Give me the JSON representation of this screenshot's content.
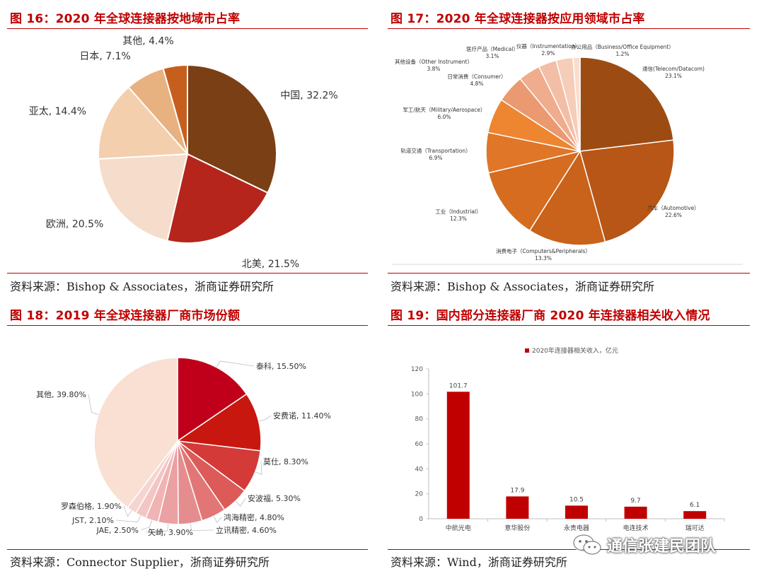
{
  "panels": {
    "fig16": {
      "title": "图 16：2020 年全球连接器按地域市占率",
      "source": "资料来源：Bishop & Associates，浙商证券研究所"
    },
    "fig17": {
      "title": "图 17：2020 年全球连接器按应用领域市占率",
      "source": "资料来源：Bishop & Associates，浙商证券研究所"
    },
    "fig18": {
      "title": "图 18：2019 年全球连接器厂商市场份额",
      "source": "资料来源：Connector Supplier，浙商证券研究所"
    },
    "fig19": {
      "title": "图 19：国内部分连接器厂商 2020 年连接器相关收入情况",
      "source": "资料来源：Wind，浙商证券研究所"
    }
  },
  "watermark": {
    "text": "通信张建民团队",
    "icon": "wechat-icon"
  },
  "chart_data": [
    {
      "id": "fig16",
      "type": "pie",
      "title": "",
      "slices": [
        {
          "label": "中国, 32.2%",
          "value": 32.2,
          "color": "#7a3f14"
        },
        {
          "label": "北美, 21.5%",
          "value": 21.5,
          "color": "#b5251b"
        },
        {
          "label": "欧洲, 20.5%",
          "value": 20.5,
          "color": "#f6dccb"
        },
        {
          "label": "亚太, 14.4%",
          "value": 14.4,
          "color": "#f3cfae"
        },
        {
          "label": "日本, 7.1%",
          "value": 7.1,
          "color": "#e8b180"
        },
        {
          "label": "其他, 4.4%",
          "value": 4.4,
          "color": "#c65f1d"
        }
      ]
    },
    {
      "id": "fig17",
      "type": "pie",
      "title": "",
      "slices": [
        {
          "label": "通信(Telecom/Datacom)",
          "pct": "23.1%",
          "value": 23.1,
          "color": "#9c4c12"
        },
        {
          "label": "汽车（Automotive）",
          "pct": "22.6%",
          "value": 22.6,
          "color": "#b75616"
        },
        {
          "label": "消费电子（Computers&Peripherals）",
          "pct": "13.3%",
          "value": 13.3,
          "color": "#c9621a"
        },
        {
          "label": "工业（Industrial）",
          "pct": "12.3%",
          "value": 12.3,
          "color": "#d56c20"
        },
        {
          "label": "轨道交通（Transportation）",
          "pct": "6.9%",
          "value": 6.9,
          "color": "#e07628"
        },
        {
          "label": "军工/航天（Military/Aerospace）",
          "pct": "6.0%",
          "value": 6.0,
          "color": "#ee8530"
        },
        {
          "label": "日常消费（Consumer）",
          "pct": "4.8%",
          "value": 4.8,
          "color": "#eb9970"
        },
        {
          "label": "其他设备（Other Instrument）",
          "pct": "3.8%",
          "value": 3.8,
          "color": "#efad8e"
        },
        {
          "label": "医疗产品（Medical）",
          "pct": "3.1%",
          "value": 3.1,
          "color": "#f3bea6"
        },
        {
          "label": "仪器（Instrumentation）",
          "pct": "2.9%",
          "value": 2.9,
          "color": "#f6cdb9"
        },
        {
          "label": "办公用品（Business/Office Equipment）",
          "pct": "1.2%",
          "value": 1.2,
          "color": "#f9ddcf"
        }
      ]
    },
    {
      "id": "fig18",
      "type": "pie",
      "title": "",
      "slices": [
        {
          "label": "泰科, 15.50%",
          "value": 15.5,
          "color": "#c0001a"
        },
        {
          "label": "安费诺, 11.40%",
          "value": 11.4,
          "color": "#c8170f"
        },
        {
          "label": "莫仕, 8.30%",
          "value": 8.3,
          "color": "#d33a38"
        },
        {
          "label": "安波福, 5.30%",
          "value": 5.3,
          "color": "#dc5a58"
        },
        {
          "label": "鸿海精密, 4.80%",
          "value": 4.8,
          "color": "#e27676"
        },
        {
          "label": "立讯精密, 4.60%",
          "value": 4.6,
          "color": "#e58d8e"
        },
        {
          "label": "矢崎, 3.90%",
          "value": 3.9,
          "color": "#eba0a2"
        },
        {
          "label": "JAE, 2.50%",
          "value": 2.5,
          "color": "#f0b4b4"
        },
        {
          "label": "JST, 2.10%",
          "value": 2.1,
          "color": "#f3c6c3"
        },
        {
          "label": "罗森伯格, 1.90%",
          "value": 1.9,
          "color": "#f6d5d0"
        },
        {
          "label": "其他, 39.80%",
          "value": 39.8,
          "color": "#f9e0d3"
        }
      ]
    },
    {
      "id": "fig19",
      "type": "bar",
      "title": "",
      "legend": "2020年连接器相关收入，亿元",
      "categories": [
        "中航光电",
        "意华股份",
        "永贵电器",
        "电连技术",
        "瑞可达"
      ],
      "values": [
        101.7,
        17.9,
        10.5,
        9.7,
        6.1
      ],
      "value_labels": [
        "101.7",
        "17.9",
        "10.5",
        "9.7",
        "6.1"
      ],
      "ylim": [
        0,
        120
      ],
      "yticks": [
        0,
        20,
        40,
        60,
        80,
        100,
        120
      ],
      "bar_color": "#c00000"
    }
  ]
}
